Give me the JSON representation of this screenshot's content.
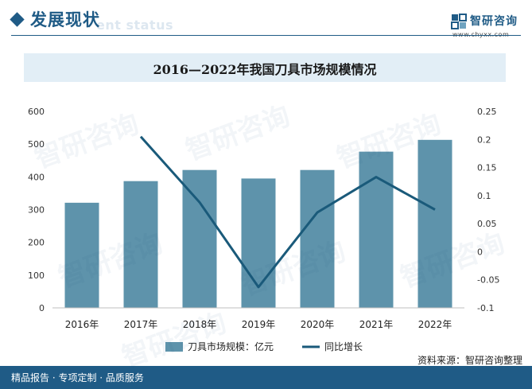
{
  "header": {
    "section_title": "发展现状",
    "section_subtitle": "ent status"
  },
  "brand": {
    "logo_name": "智研咨询",
    "logo_url": "www.chyxx.com",
    "watermark_text": "智研咨询",
    "primary_color": "#1f5b86"
  },
  "chart_data": {
    "type": "bar",
    "title": "2016—2022年我国刀具市场规模情况",
    "categories": [
      "2016年",
      "2017年",
      "2018年",
      "2019年",
      "2020年",
      "2021年",
      "2022年"
    ],
    "series": [
      {
        "name": "刀具市场规模：亿元",
        "type": "bar",
        "axis": "left",
        "color": "#5e93ab",
        "values": [
          321,
          387,
          421,
          395,
          421,
          477,
          513
        ]
      },
      {
        "name": "同比增长",
        "type": "line",
        "axis": "right",
        "color": "#1a5a7a",
        "values": [
          null,
          0.205,
          0.088,
          -0.063,
          0.07,
          0.133,
          0.075
        ]
      }
    ],
    "y_left": {
      "min": 0,
      "max": 600,
      "ticks": [
        "0",
        "100",
        "200",
        "300",
        "400",
        "500",
        "600"
      ]
    },
    "y_right": {
      "min": -0.1,
      "max": 0.25,
      "ticks": [
        "-0.1",
        "-0.05",
        "0",
        "0.05",
        "0.1",
        "0.15",
        "0.2",
        "0.25"
      ]
    },
    "grid": false,
    "legend_position": "bottom"
  },
  "footer": {
    "left_text": "精品报告 · 专项定制 · 品质服务",
    "source_text": "资料来源：智研咨询整理"
  }
}
